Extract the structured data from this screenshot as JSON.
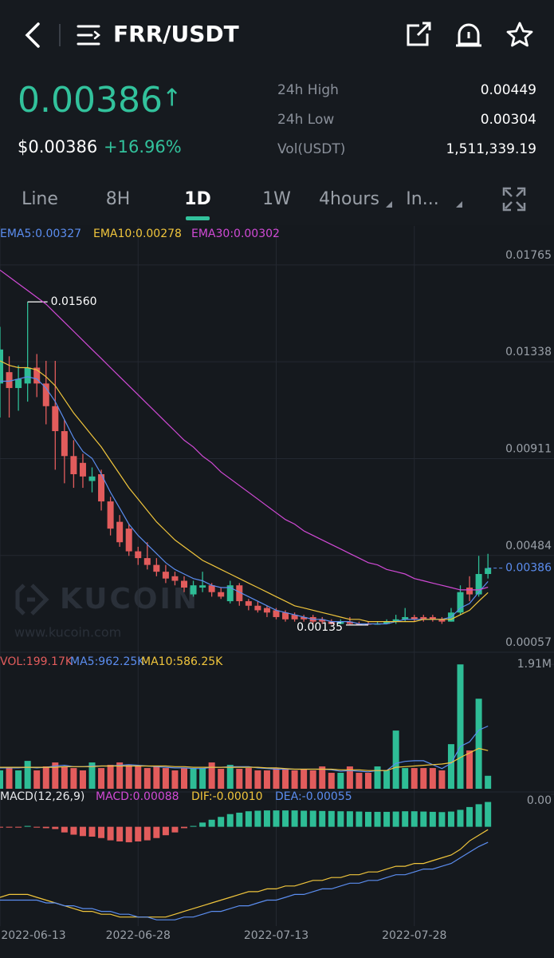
{
  "header": {
    "pair": "FRR/USDT"
  },
  "ticker": {
    "price": "0.00386",
    "arrow": "↑",
    "fiat_price": "$0.00386",
    "change": "+16.96%",
    "stats": [
      {
        "label": "24h High",
        "value": "0.00449"
      },
      {
        "label": "24h Low",
        "value": "0.00304"
      },
      {
        "label": "Vol(USDT)",
        "value": "1,511,339.19"
      }
    ]
  },
  "tabs": [
    "Line",
    "8H",
    "1D",
    "1W",
    "4hours",
    "In..."
  ],
  "active_tab": "1D",
  "watermark": {
    "brand": "KUCOIN",
    "url": "www.kucoin.com"
  },
  "chart_data": [
    {
      "type": "candlestick",
      "up_color": "#2ebd96",
      "down_color": "#e25c5c",
      "legend": [
        "EMA5:0.00327",
        "EMA10:0.00278",
        "EMA30:0.00302"
      ],
      "categories": [
        "2022-06-13",
        null,
        null,
        null,
        null,
        null,
        null,
        null,
        null,
        null,
        null,
        null,
        null,
        null,
        null,
        "2022-06-28",
        null,
        null,
        null,
        null,
        null,
        null,
        null,
        null,
        null,
        null,
        null,
        null,
        null,
        null,
        "2022-07-13",
        null,
        null,
        null,
        null,
        null,
        null,
        null,
        null,
        null,
        null,
        null,
        null,
        null,
        null,
        "2022-07-28",
        null,
        null,
        null,
        null,
        null,
        null,
        null,
        null
      ],
      "open": [
        0.012,
        0.0125,
        0.0118,
        0.012,
        0.0127,
        0.012,
        0.011,
        0.0099,
        0.0088,
        0.0085,
        0.0077,
        0.008,
        0.0068,
        0.0059,
        0.0056,
        0.0046,
        0.0043,
        0.004,
        0.0037,
        0.0035,
        0.0033,
        0.0027,
        0.003,
        0.0031,
        0.0028,
        0.0024,
        0.0031,
        0.0024,
        0.0022,
        0.0021,
        0.002,
        0.0019,
        0.0018,
        0.0017,
        0.0017,
        0.0016,
        0.0015,
        0.0014,
        0.0015,
        0.0014,
        0.0014,
        0.00137,
        0.0014,
        0.0015,
        0.0016,
        0.0017,
        0.0017,
        0.0017,
        0.0016,
        0.0015,
        0.0019,
        0.003,
        0.0027,
        0.0036
      ],
      "high": [
        0.0145,
        0.0132,
        0.0128,
        0.0156,
        0.0133,
        0.013,
        0.013,
        0.0104,
        0.0095,
        0.0089,
        0.0083,
        0.0082,
        0.007,
        0.0062,
        0.0058,
        0.0048,
        0.005,
        0.0043,
        0.004,
        0.0037,
        0.0035,
        0.0033,
        0.0037,
        0.0032,
        0.003,
        0.0033,
        0.0032,
        0.0025,
        0.0024,
        0.0022,
        0.0021,
        0.002,
        0.0019,
        0.0018,
        0.0018,
        0.0017,
        0.0016,
        0.0016,
        0.0017,
        0.0015,
        0.0015,
        0.0015,
        0.0016,
        0.0018,
        0.0021,
        0.0018,
        0.0018,
        0.0018,
        0.0017,
        0.0021,
        0.0031,
        0.0035,
        0.0044,
        0.00449
      ],
      "low": [
        0.0105,
        0.0105,
        0.0108,
        0.0112,
        0.0114,
        0.0102,
        0.0082,
        0.0076,
        0.0074,
        0.0074,
        0.0072,
        0.0064,
        0.0053,
        0.0048,
        0.0044,
        0.004,
        0.0038,
        0.0035,
        0.0032,
        0.0031,
        0.0028,
        0.0026,
        0.0028,
        0.0026,
        0.0025,
        0.0023,
        0.0022,
        0.002,
        0.0019,
        0.0017,
        0.0016,
        0.0015,
        0.0015,
        0.0015,
        0.0014,
        0.0014,
        0.00138,
        0.00138,
        0.00138,
        0.00136,
        0.00135,
        0.00136,
        0.00138,
        0.0014,
        0.0015,
        0.0015,
        0.0015,
        0.0015,
        0.0014,
        0.0015,
        0.0018,
        0.0024,
        0.0026,
        0.0034
      ],
      "close": [
        0.0135,
        0.0118,
        0.0122,
        0.0127,
        0.012,
        0.011,
        0.0099,
        0.0088,
        0.008,
        0.0079,
        0.0079,
        0.0068,
        0.0056,
        0.005,
        0.0046,
        0.0043,
        0.004,
        0.0037,
        0.0034,
        0.0033,
        0.003,
        0.0031,
        0.0031,
        0.0028,
        0.0026,
        0.0031,
        0.0024,
        0.0022,
        0.002,
        0.0019,
        0.0017,
        0.0016,
        0.0016,
        0.0016,
        0.0015,
        0.0015,
        0.0014,
        0.0015,
        0.0014,
        0.00138,
        0.00137,
        0.0014,
        0.0015,
        0.0016,
        0.0017,
        0.0016,
        0.0016,
        0.0016,
        0.0015,
        0.0019,
        0.0028,
        0.0027,
        0.0036,
        0.00386
      ],
      "series": [
        {
          "name": "EMA5",
          "color": "#5b8def",
          "values": [
            0.0121,
            0.0121,
            0.0122,
            0.0123,
            0.0122,
            0.0118,
            0.0112,
            0.0104,
            0.0096,
            0.009,
            0.0087,
            0.008,
            0.0072,
            0.0065,
            0.0058,
            0.0053,
            0.0049,
            0.0045,
            0.0041,
            0.0038,
            0.0036,
            0.0034,
            0.0033,
            0.0031,
            0.003,
            0.003,
            0.0028,
            0.0026,
            0.0024,
            0.0022,
            0.002,
            0.0019,
            0.0018,
            0.0017,
            0.0016,
            0.0016,
            0.0015,
            0.0015,
            0.0015,
            0.0014,
            0.0014,
            0.0014,
            0.0014,
            0.0015,
            0.0016,
            0.0016,
            0.0016,
            0.0016,
            0.0016,
            0.0017,
            0.0021,
            0.0023,
            0.0028,
            0.00327
          ]
        },
        {
          "name": "EMA10",
          "color": "#f0c53c",
          "values": [
            0.013,
            0.0128,
            0.0127,
            0.0127,
            0.0126,
            0.0123,
            0.0119,
            0.0113,
            0.0107,
            0.0102,
            0.0097,
            0.0092,
            0.0086,
            0.008,
            0.0074,
            0.0069,
            0.0064,
            0.0059,
            0.0055,
            0.0051,
            0.0048,
            0.0045,
            0.0042,
            0.004,
            0.0038,
            0.0036,
            0.0034,
            0.0032,
            0.003,
            0.0028,
            0.0026,
            0.0024,
            0.0022,
            0.0021,
            0.002,
            0.0019,
            0.0018,
            0.0017,
            0.0016,
            0.0016,
            0.0015,
            0.0015,
            0.0015,
            0.0015,
            0.0015,
            0.0015,
            0.0016,
            0.0016,
            0.0016,
            0.0016,
            0.0018,
            0.002,
            0.0024,
            0.00278
          ]
        },
        {
          "name": "EMA30",
          "color": "#d14ad6",
          "values": [
            0.017,
            0.0167,
            0.0164,
            0.0161,
            0.0158,
            0.0155,
            0.0151,
            0.0147,
            0.0143,
            0.0139,
            0.0135,
            0.0131,
            0.0127,
            0.0123,
            0.0119,
            0.0115,
            0.0111,
            0.0107,
            0.0103,
            0.0099,
            0.0095,
            0.0092,
            0.0088,
            0.0085,
            0.0081,
            0.0078,
            0.0075,
            0.0072,
            0.0069,
            0.0066,
            0.0063,
            0.006,
            0.0058,
            0.0055,
            0.0053,
            0.0051,
            0.0049,
            0.0047,
            0.0045,
            0.0043,
            0.0041,
            0.004,
            0.0038,
            0.0037,
            0.0036,
            0.0034,
            0.0033,
            0.0032,
            0.0031,
            0.003,
            0.0029,
            0.0029,
            0.0029,
            0.00302
          ]
        }
      ],
      "ylim": [
        0.00022,
        0.01835
      ],
      "yticks": [
        0.01765,
        0.01338,
        0.00911,
        0.00484,
        0.00057
      ],
      "last_price": 0.00386,
      "max_label": {
        "value": 0.0156,
        "label": "0.01560"
      },
      "min_label": 0.00135,
      "grid": true
    },
    {
      "type": "volume",
      "legend": [
        "VOL:199.17K",
        "MA5:962.25K",
        "MA10:586.25K"
      ],
      "values": [
        282000,
        318000,
        282000,
        428000,
        282000,
        343000,
        404000,
        343000,
        318000,
        282000,
        404000,
        318000,
        367000,
        404000,
        367000,
        343000,
        318000,
        343000,
        318000,
        282000,
        318000,
        318000,
        318000,
        404000,
        306000,
        367000,
        306000,
        318000,
        282000,
        282000,
        318000,
        306000,
        282000,
        306000,
        282000,
        343000,
        245000,
        245000,
        343000,
        245000,
        245000,
        343000,
        282000,
        894000,
        318000,
        318000,
        318000,
        318000,
        282000,
        685000,
        1910000,
        588000,
        1383000,
        199170
      ],
      "series": [
        {
          "name": "MA5",
          "color": "#5b8def",
          "values": [
            320000,
            320000,
            320000,
            330000,
            320000,
            330000,
            350000,
            360000,
            340000,
            340000,
            350000,
            350000,
            350000,
            360000,
            370000,
            360000,
            350000,
            340000,
            330000,
            320000,
            320000,
            310000,
            310000,
            330000,
            330000,
            340000,
            340000,
            340000,
            320000,
            310000,
            300000,
            300000,
            300000,
            300000,
            300000,
            300000,
            290000,
            270000,
            280000,
            270000,
            260000,
            280000,
            280000,
            390000,
            420000,
            430000,
            430000,
            370000,
            310000,
            390000,
            650000,
            720000,
            900000,
            962250
          ]
        },
        {
          "name": "MA10",
          "color": "#f0c53c",
          "values": [
            330000,
            330000,
            330000,
            330000,
            330000,
            330000,
            330000,
            340000,
            340000,
            340000,
            340000,
            350000,
            350000,
            350000,
            350000,
            350000,
            350000,
            350000,
            350000,
            340000,
            340000,
            330000,
            330000,
            330000,
            330000,
            330000,
            330000,
            330000,
            330000,
            320000,
            320000,
            310000,
            300000,
            300000,
            300000,
            300000,
            300000,
            290000,
            290000,
            290000,
            280000,
            280000,
            280000,
            330000,
            340000,
            350000,
            360000,
            370000,
            380000,
            400000,
            480000,
            550000,
            620000,
            586250
          ]
        }
      ],
      "ylim": [
        0,
        2060000
      ],
      "yticks": [
        {
          "value": 1910000,
          "label": "1.91M"
        }
      ]
    },
    {
      "type": "macd",
      "legend": [
        "MACD(12,26,9)",
        "MACD:0.00088",
        "DIF:-0.00010",
        "DEA:-0.00055"
      ],
      "up_color": "#2ebd96",
      "down_color": "#e25c5c",
      "values": [
        -3e-05,
        -3e-05,
        -3e-05,
        3e-05,
        -3e-05,
        -5e-05,
        -8e-05,
        -0.0002,
        -0.00028,
        -0.00033,
        -0.00035,
        -0.0004,
        -0.00048,
        -0.00052,
        -0.00055,
        -0.00052,
        -0.00048,
        -0.0004,
        -0.0003,
        -0.0002,
        -5e-05,
        3e-05,
        0.00015,
        0.00025,
        0.00035,
        0.00045,
        0.0005,
        0.00055,
        0.00057,
        0.00058,
        0.00058,
        0.00058,
        0.00058,
        0.00057,
        0.00057,
        0.00056,
        0.00056,
        0.00055,
        0.00055,
        0.00054,
        0.00053,
        0.00053,
        0.00053,
        0.00054,
        0.00055,
        0.00055,
        0.00054,
        0.00053,
        0.00052,
        0.00054,
        0.0006,
        0.0007,
        0.0008,
        0.00088
      ],
      "series": [
        {
          "name": "DIF",
          "color": "#f0c53c",
          "values": [
            -0.0025,
            -0.0024,
            -0.0024,
            -0.0024,
            -0.0025,
            -0.0026,
            -0.0027,
            -0.0028,
            -0.0029,
            -0.003,
            -0.003,
            -0.0031,
            -0.0031,
            -0.0032,
            -0.0032,
            -0.0032,
            -0.0032,
            -0.0032,
            -0.0032,
            -0.0031,
            -0.003,
            -0.0029,
            -0.0028,
            -0.0027,
            -0.0026,
            -0.0025,
            -0.0024,
            -0.0023,
            -0.0023,
            -0.0022,
            -0.0022,
            -0.0021,
            -0.0021,
            -0.002,
            -0.0019,
            -0.0019,
            -0.0018,
            -0.0018,
            -0.0017,
            -0.0017,
            -0.0016,
            -0.0016,
            -0.0015,
            -0.0014,
            -0.0014,
            -0.0013,
            -0.0013,
            -0.0012,
            -0.0011,
            -0.001,
            -0.0008,
            -0.0005,
            -0.0003,
            -0.0001
          ]
        },
        {
          "name": "DEA",
          "color": "#5b8def",
          "values": [
            -0.0026,
            -0.0026,
            -0.0026,
            -0.0026,
            -0.0026,
            -0.0027,
            -0.0027,
            -0.0028,
            -0.0028,
            -0.0029,
            -0.0029,
            -0.003,
            -0.003,
            -0.0031,
            -0.0031,
            -0.0032,
            -0.0032,
            -0.0033,
            -0.0033,
            -0.0033,
            -0.0032,
            -0.0032,
            -0.0031,
            -0.003,
            -0.003,
            -0.0029,
            -0.0028,
            -0.0028,
            -0.0027,
            -0.0026,
            -0.0026,
            -0.0025,
            -0.0024,
            -0.0024,
            -0.0023,
            -0.0022,
            -0.0022,
            -0.0021,
            -0.002,
            -0.002,
            -0.0019,
            -0.0019,
            -0.0018,
            -0.0017,
            -0.0017,
            -0.0016,
            -0.0015,
            -0.0015,
            -0.0014,
            -0.0013,
            -0.0011,
            -0.0009,
            -0.0007,
            -0.00055
          ]
        }
      ],
      "ylim": [
        -0.00352,
        0.00115
      ],
      "yticks": [
        {
          "value": 0.00115,
          "label": "0.00"
        }
      ]
    }
  ]
}
